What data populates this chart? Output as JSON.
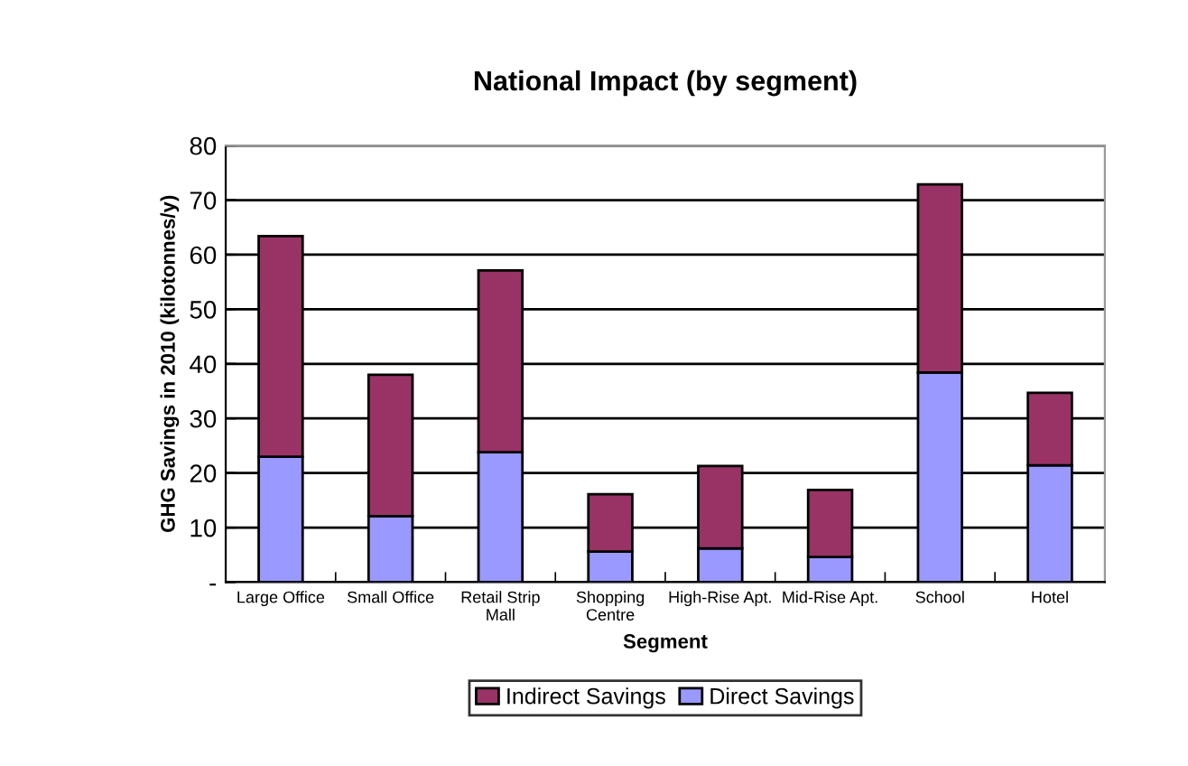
{
  "chart_data": {
    "type": "bar",
    "title": "National Impact (by segment)",
    "xlabel": "Segment",
    "ylabel": "GHG Savings in 2010 (kilotonnes/y)",
    "categories": [
      "Large Office",
      "Small Office",
      "Retail Strip\nMall",
      "Shopping\nCentre",
      "High-Rise Apt.",
      "Mid-Rise Apt.",
      "School",
      "Hotel"
    ],
    "stacked": true,
    "series": [
      {
        "name": "Direct Savings",
        "color": "#9999ff",
        "values": [
          23.0,
          12.1,
          23.8,
          5.6,
          6.2,
          4.6,
          38.4,
          21.4
        ]
      },
      {
        "name": "Indirect Savings",
        "color": "#993366",
        "values": [
          40.4,
          25.9,
          33.3,
          10.5,
          15.1,
          12.3,
          34.5,
          13.3
        ]
      }
    ],
    "ylim": [
      0,
      80
    ],
    "yticks": [
      {
        "value": 0,
        "label": "-"
      },
      10,
      20,
      30,
      40,
      50,
      60,
      70,
      80
    ],
    "grid": "y",
    "legend": "bottom"
  }
}
